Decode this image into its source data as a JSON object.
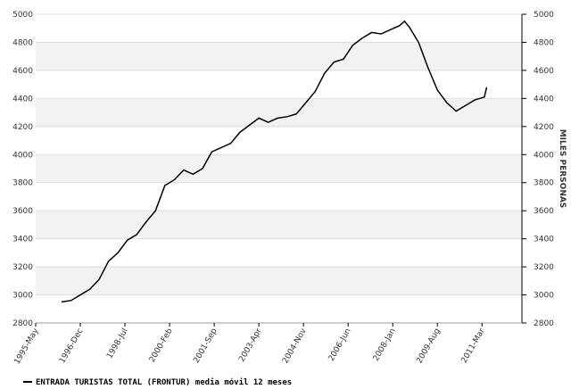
{
  "chart_data": {
    "type": "line",
    "y_label": "MILES PERSONAS",
    "x": [
      "1996-04",
      "1996-08",
      "1996-12",
      "1997-04",
      "1997-08",
      "1997-12",
      "1998-04",
      "1998-08",
      "1998-12",
      "1999-04",
      "1999-08",
      "1999-12",
      "2000-04",
      "2000-08",
      "2000-12",
      "2001-04",
      "2001-08",
      "2001-12",
      "2002-04",
      "2002-08",
      "2002-12",
      "2003-04",
      "2003-08",
      "2003-12",
      "2004-04",
      "2004-08",
      "2004-12",
      "2005-04",
      "2005-08",
      "2005-12",
      "2006-04",
      "2006-08",
      "2006-12",
      "2007-04",
      "2007-08",
      "2007-12",
      "2008-04",
      "2008-06",
      "2008-08",
      "2008-12",
      "2009-04",
      "2009-08",
      "2009-12",
      "2010-04",
      "2010-08",
      "2010-12",
      "2011-04",
      "2011-05"
    ],
    "series": [
      {
        "name": "ENTRADA TURISTAS TOTAL (FRONTUR) media móvil 12 meses",
        "color": "#000000",
        "values": [
          2950,
          2960,
          3000,
          3040,
          3110,
          3240,
          3300,
          3390,
          3430,
          3520,
          3600,
          3780,
          3820,
          3890,
          3860,
          3900,
          4020,
          4050,
          4080,
          4160,
          4210,
          4260,
          4230,
          4260,
          4270,
          4290,
          4370,
          4450,
          4580,
          4660,
          4680,
          4780,
          4830,
          4870,
          4860,
          4890,
          4920,
          4950,
          4910,
          4800,
          4620,
          4460,
          4370,
          4310,
          4350,
          4390,
          4410,
          4480
        ]
      }
    ],
    "xlim": [
      "1995-05",
      "2012-08"
    ],
    "xticks": [
      {
        "value": "1995-05",
        "label": "1995-May"
      },
      {
        "value": "1996-12",
        "label": "1996-Dec"
      },
      {
        "value": "1998-07",
        "label": "1998-Jul"
      },
      {
        "value": "2000-02",
        "label": "2000-Feb"
      },
      {
        "value": "2001-09",
        "label": "2001-Sep"
      },
      {
        "value": "2003-04",
        "label": "2003-Apr"
      },
      {
        "value": "2004-11",
        "label": "2004-Nov"
      },
      {
        "value": "2006-06",
        "label": "2006-Jun"
      },
      {
        "value": "2008-01",
        "label": "2008-Jan"
      },
      {
        "value": "2009-08",
        "label": "2009-Aug"
      },
      {
        "value": "2011-03",
        "label": "2011-Mar"
      }
    ],
    "ylim": [
      2800,
      5000
    ],
    "yticks": [
      2800,
      3000,
      3200,
      3400,
      3600,
      3800,
      4000,
      4200,
      4400,
      4600,
      4800,
      5000
    ],
    "band_color": "#f2f2f2",
    "grid": true
  }
}
